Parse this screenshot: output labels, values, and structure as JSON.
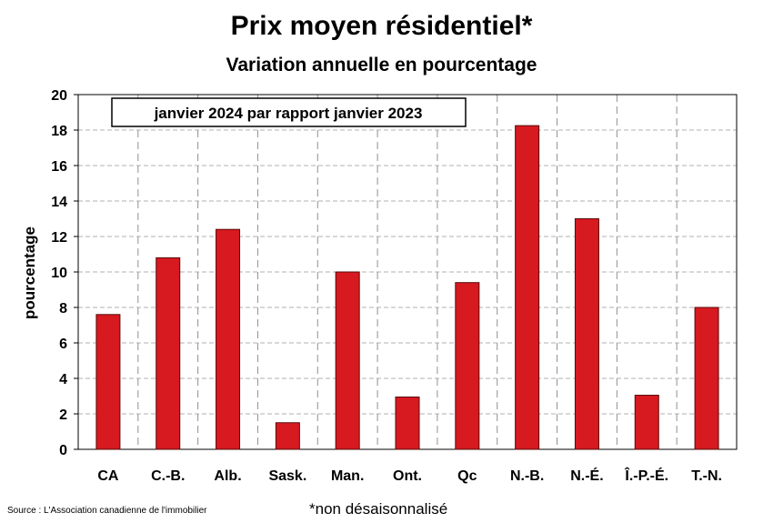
{
  "chart_data": {
    "type": "bar",
    "title": "Prix moyen résidentiel*",
    "subtitle": "Variation annuelle en pourcentage",
    "ylabel": "pourcentage",
    "xlabel": "",
    "ylim": [
      0,
      20
    ],
    "yticks": [
      0,
      2,
      4,
      6,
      8,
      10,
      12,
      14,
      16,
      18,
      20
    ],
    "grid": true,
    "categories": [
      "CA",
      "C.-B.",
      "Alb.",
      "Sask.",
      "Man.",
      "Ont.",
      "Qc",
      "N.-B.",
      "N.-É.",
      "Î.-P.-É.",
      "T.-N."
    ],
    "values": [
      7.6,
      10.8,
      12.4,
      1.5,
      10.0,
      2.95,
      9.4,
      18.25,
      13.0,
      3.05,
      8.0
    ],
    "annotation": "janvier 2024 par rapport janvier 2023",
    "bar_color": "#d71920",
    "bar_edge_color": "#5a0a0a",
    "source": "Source : L'Association canadienne de l'immobilier",
    "footnote": "*non désaisonnalisé"
  }
}
